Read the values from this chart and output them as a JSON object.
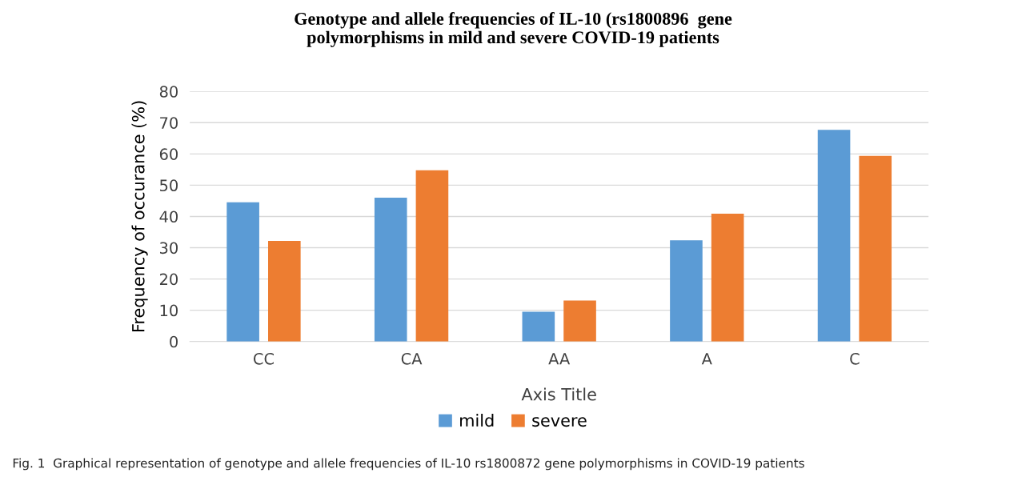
{
  "chart_data": {
    "type": "bar",
    "title": "Genotype and allele frequencies of IL-10 (rs1800896  gene\npolymorphisms in mild and severe COVID-19 patients",
    "xlabel": "Axis Title",
    "ylabel": "Frequency of occurance (%)",
    "categories": [
      "CC",
      "CA",
      "AA",
      "A",
      "C"
    ],
    "series": [
      {
        "name": "mild",
        "color": "#5b9bd5",
        "values": [
          44.5,
          46.0,
          9.5,
          32.4,
          67.7
        ]
      },
      {
        "name": "severe",
        "color": "#ed7d31",
        "values": [
          32.2,
          54.8,
          13.1,
          40.9,
          59.4
        ]
      }
    ],
    "ylim": [
      0,
      80
    ],
    "yticks": [
      0,
      10,
      20,
      30,
      40,
      50,
      60,
      70,
      80
    ],
    "grid": "y",
    "legend": "bottom",
    "annotations": [
      "Fig. 1  Graphical representation of genotype and allele frequencies of IL-10 rs1800872 gene polymorphisms in COVID-19 patients"
    ]
  }
}
